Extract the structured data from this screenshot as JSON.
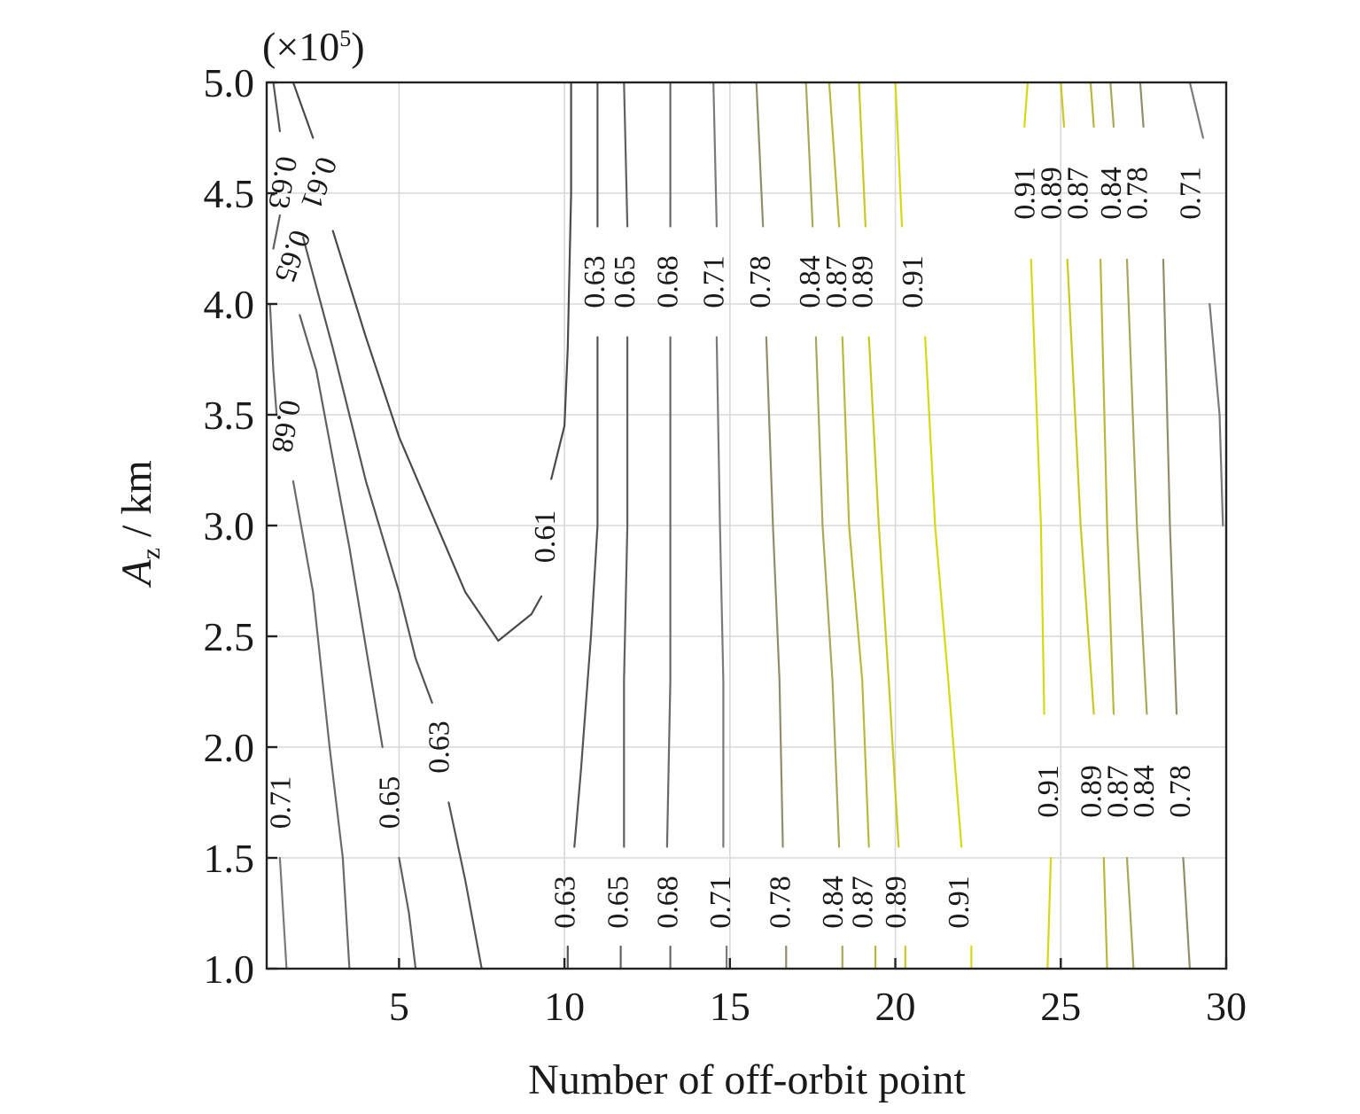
{
  "chart_data": {
    "type": "contour",
    "title": "",
    "xlabel": "Number of off-orbit point",
    "ylabel_main": "A",
    "ylabel_sub": "z",
    "ylabel_unit": " / km",
    "y_multiplier_base": "(×10",
    "y_multiplier_exp": "5",
    "y_multiplier_close": ")",
    "xlim": [
      1,
      30
    ],
    "ylim": [
      1.0,
      5.0
    ],
    "grid": true,
    "x_ticks": [
      5,
      10,
      15,
      20,
      25,
      30
    ],
    "x_tick_labels": [
      "5",
      "10",
      "15",
      "20",
      "25",
      "30"
    ],
    "y_ticks": [
      1.0,
      1.5,
      2.0,
      2.5,
      3.0,
      3.5,
      4.0,
      4.5,
      5.0
    ],
    "y_tick_labels": [
      "1.0",
      "1.5",
      "2.0",
      "2.5",
      "3.0",
      "3.5",
      "4.0",
      "4.5",
      "5.0"
    ],
    "contours": [
      {
        "level": "0.61",
        "color": "#4a4a4a",
        "points": [
          [
            1.8,
            5.0
          ],
          [
            2.4,
            4.75
          ]
        ]
      },
      {
        "level": "0.61",
        "color": "#4a4a4a",
        "points": [
          [
            3.0,
            4.33
          ],
          [
            4.0,
            3.85
          ],
          [
            5.0,
            3.4
          ],
          [
            6.0,
            3.05
          ],
          [
            7.0,
            2.7
          ],
          [
            8.0,
            2.48
          ],
          [
            9.0,
            2.6
          ],
          [
            9.3,
            2.68
          ]
        ]
      },
      {
        "level": "0.61",
        "color": "#4a4a4a",
        "points": [
          [
            9.6,
            3.21
          ],
          [
            10.0,
            3.45
          ],
          [
            10.1,
            3.8
          ],
          [
            10.2,
            4.5
          ],
          [
            10.2,
            5.0
          ]
        ]
      },
      {
        "level": "0.63",
        "color": "#555555",
        "points": [
          [
            1.2,
            5.0
          ],
          [
            1.4,
            4.78
          ]
        ]
      },
      {
        "level": "0.63",
        "color": "#555555",
        "points": [
          [
            2.1,
            4.3
          ],
          [
            3.0,
            3.8
          ],
          [
            4.0,
            3.2
          ],
          [
            5.0,
            2.7
          ],
          [
            5.5,
            2.4
          ],
          [
            6.0,
            2.2
          ]
        ]
      },
      {
        "level": "0.63",
        "color": "#555555",
        "points": [
          [
            6.5,
            1.75
          ],
          [
            7.0,
            1.4
          ],
          [
            7.5,
            1.0
          ]
        ]
      },
      {
        "level": "0.63",
        "color": "#555555",
        "points": [
          [
            10.3,
            1.55
          ],
          [
            10.5,
            1.9
          ],
          [
            10.8,
            2.5
          ],
          [
            11.0,
            3.0
          ],
          [
            11.0,
            3.85
          ]
        ]
      },
      {
        "level": "0.63",
        "color": "#555555",
        "points": [
          [
            11.0,
            4.35
          ],
          [
            11.0,
            5.0
          ]
        ]
      },
      {
        "level": "0.63",
        "color": "#555555",
        "points": [
          [
            10.1,
            1.1
          ],
          [
            10.1,
            1.0
          ]
        ]
      },
      {
        "level": "0.65",
        "color": "#606060",
        "points": [
          [
            1.2,
            4.25
          ],
          [
            1.4,
            4.4
          ]
        ]
      },
      {
        "level": "0.65",
        "color": "#606060",
        "points": [
          [
            2.0,
            3.95
          ],
          [
            2.5,
            3.7
          ],
          [
            3.0,
            3.3
          ],
          [
            3.5,
            2.9
          ],
          [
            4.0,
            2.45
          ],
          [
            4.5,
            2.0
          ]
        ]
      },
      {
        "level": "0.65",
        "color": "#606060",
        "points": [
          [
            5.0,
            1.5
          ],
          [
            5.3,
            1.25
          ],
          [
            5.5,
            1.0
          ]
        ]
      },
      {
        "level": "0.65",
        "color": "#606060",
        "points": [
          [
            11.8,
            1.55
          ],
          [
            11.8,
            2.3
          ],
          [
            11.9,
            3.0
          ],
          [
            11.9,
            3.85
          ]
        ]
      },
      {
        "level": "0.65",
        "color": "#606060",
        "points": [
          [
            11.9,
            4.35
          ],
          [
            11.8,
            5.0
          ]
        ]
      },
      {
        "level": "0.65",
        "color": "#606060",
        "points": [
          [
            11.7,
            1.1
          ],
          [
            11.7,
            1.0
          ]
        ]
      },
      {
        "level": "0.68",
        "color": "#6a6a6a",
        "points": [
          [
            1.1,
            4.0
          ],
          [
            1.2,
            3.7
          ],
          [
            1.3,
            3.5
          ]
        ]
      },
      {
        "level": "0.68",
        "color": "#6a6a6a",
        "points": [
          [
            1.8,
            3.2
          ],
          [
            2.4,
            2.7
          ],
          [
            2.9,
            2.0
          ],
          [
            3.3,
            1.5
          ],
          [
            3.5,
            1.0
          ]
        ]
      },
      {
        "level": "0.68",
        "color": "#6a6a6a",
        "points": [
          [
            13.1,
            1.55
          ],
          [
            13.2,
            2.3
          ],
          [
            13.2,
            3.0
          ],
          [
            13.2,
            3.85
          ]
        ]
      },
      {
        "level": "0.68",
        "color": "#6a6a6a",
        "points": [
          [
            13.2,
            4.35
          ],
          [
            13.2,
            5.0
          ]
        ]
      },
      {
        "level": "0.68",
        "color": "#6a6a6a",
        "points": [
          [
            13.2,
            1.1
          ],
          [
            13.2,
            1.0
          ]
        ]
      },
      {
        "level": "0.71",
        "color": "#7a7a7a",
        "points": [
          [
            1.4,
            1.5
          ],
          [
            1.6,
            1.0
          ]
        ]
      },
      {
        "level": "0.71",
        "color": "#7a7a7a",
        "points": [
          [
            14.8,
            1.55
          ],
          [
            14.8,
            2.3
          ],
          [
            14.7,
            3.0
          ],
          [
            14.6,
            3.85
          ]
        ]
      },
      {
        "level": "0.71",
        "color": "#7a7a7a",
        "points": [
          [
            14.6,
            4.35
          ],
          [
            14.5,
            5.0
          ]
        ]
      },
      {
        "level": "0.71",
        "color": "#7a7a7a",
        "points": [
          [
            14.9,
            1.1
          ],
          [
            14.9,
            1.0
          ]
        ]
      },
      {
        "level": "0.71",
        "color": "#7a7a7a",
        "points": [
          [
            28.9,
            5.0
          ],
          [
            29.3,
            4.75
          ]
        ]
      },
      {
        "level": "0.71",
        "color": "#7a7a7a",
        "points": [
          [
            29.5,
            4.0
          ],
          [
            29.8,
            3.5
          ],
          [
            29.9,
            3.0
          ]
        ]
      },
      {
        "level": "0.78",
        "color": "#8e8e6a",
        "points": [
          [
            16.6,
            1.55
          ],
          [
            16.5,
            2.3
          ],
          [
            16.3,
            3.0
          ],
          [
            16.1,
            3.85
          ]
        ]
      },
      {
        "level": "0.78",
        "color": "#8e8e6a",
        "points": [
          [
            16.0,
            4.35
          ],
          [
            15.8,
            5.0
          ]
        ]
      },
      {
        "level": "0.78",
        "color": "#8e8e6a",
        "points": [
          [
            16.7,
            1.1
          ],
          [
            16.7,
            1.0
          ]
        ]
      },
      {
        "level": "0.78",
        "color": "#8e8e6a",
        "points": [
          [
            27.5,
            4.8
          ],
          [
            27.4,
            5.0
          ]
        ]
      },
      {
        "level": "0.78",
        "color": "#8e8e6a",
        "points": [
          [
            28.1,
            4.2
          ],
          [
            28.3,
            3.0
          ],
          [
            28.5,
            2.15
          ]
        ]
      },
      {
        "level": "0.78",
        "color": "#8e8e6a",
        "points": [
          [
            28.7,
            1.5
          ],
          [
            28.9,
            1.0
          ]
        ]
      },
      {
        "level": "0.84",
        "color": "#a8a85a",
        "points": [
          [
            18.3,
            1.55
          ],
          [
            18.1,
            2.3
          ],
          [
            17.8,
            3.0
          ],
          [
            17.6,
            3.85
          ]
        ]
      },
      {
        "level": "0.84",
        "color": "#a8a85a",
        "points": [
          [
            17.5,
            4.35
          ],
          [
            17.3,
            5.0
          ]
        ]
      },
      {
        "level": "0.84",
        "color": "#a8a85a",
        "points": [
          [
            18.4,
            1.1
          ],
          [
            18.4,
            1.0
          ]
        ]
      },
      {
        "level": "0.84",
        "color": "#a8a85a",
        "points": [
          [
            26.6,
            4.8
          ],
          [
            26.5,
            5.0
          ]
        ]
      },
      {
        "level": "0.84",
        "color": "#a8a85a",
        "points": [
          [
            27.0,
            4.2
          ],
          [
            27.3,
            3.0
          ],
          [
            27.6,
            2.15
          ]
        ]
      },
      {
        "level": "0.84",
        "color": "#a8a85a",
        "points": [
          [
            27.0,
            1.5
          ],
          [
            27.2,
            1.0
          ]
        ]
      },
      {
        "level": "0.87",
        "color": "#b8b83c",
        "points": [
          [
            19.2,
            1.55
          ],
          [
            19.0,
            2.3
          ],
          [
            18.6,
            3.0
          ],
          [
            18.4,
            3.85
          ]
        ]
      },
      {
        "level": "0.87",
        "color": "#b8b83c",
        "points": [
          [
            18.3,
            4.35
          ],
          [
            18.0,
            5.0
          ]
        ]
      },
      {
        "level": "0.87",
        "color": "#b8b83c",
        "points": [
          [
            19.4,
            1.1
          ],
          [
            19.4,
            1.0
          ]
        ]
      },
      {
        "level": "0.87",
        "color": "#b8b83c",
        "points": [
          [
            26.0,
            4.8
          ],
          [
            25.9,
            5.0
          ]
        ]
      },
      {
        "level": "0.87",
        "color": "#b8b83c",
        "points": [
          [
            26.2,
            4.2
          ],
          [
            26.4,
            3.0
          ],
          [
            26.6,
            2.15
          ]
        ]
      },
      {
        "level": "0.87",
        "color": "#b8b83c",
        "points": [
          [
            26.3,
            1.5
          ],
          [
            26.4,
            1.0
          ]
        ]
      },
      {
        "level": "0.89",
        "color": "#c9c922",
        "points": [
          [
            20.1,
            1.55
          ],
          [
            19.8,
            2.3
          ],
          [
            19.5,
            3.0
          ],
          [
            19.2,
            3.85
          ]
        ]
      },
      {
        "level": "0.89",
        "color": "#c9c922",
        "points": [
          [
            19.1,
            4.35
          ],
          [
            18.9,
            5.0
          ]
        ]
      },
      {
        "level": "0.89",
        "color": "#c9c922",
        "points": [
          [
            20.3,
            1.1
          ],
          [
            20.3,
            1.0
          ]
        ]
      },
      {
        "level": "0.89",
        "color": "#c9c922",
        "points": [
          [
            25.1,
            4.8
          ],
          [
            25.0,
            5.0
          ]
        ]
      },
      {
        "level": "0.89",
        "color": "#c9c922",
        "points": [
          [
            25.2,
            4.2
          ],
          [
            25.6,
            3.0
          ],
          [
            26.0,
            2.15
          ]
        ]
      },
      {
        "level": "0.91",
        "color": "#d8d812",
        "points": [
          [
            22.0,
            1.55
          ],
          [
            21.6,
            2.3
          ],
          [
            21.2,
            3.0
          ],
          [
            20.9,
            3.85
          ]
        ]
      },
      {
        "level": "0.91",
        "color": "#d8d812",
        "points": [
          [
            20.2,
            4.35
          ],
          [
            20.0,
            5.0
          ]
        ]
      },
      {
        "level": "0.91",
        "color": "#d8d812",
        "points": [
          [
            22.3,
            1.1
          ],
          [
            22.3,
            1.0
          ]
        ]
      },
      {
        "level": "0.91",
        "color": "#d8d812",
        "points": [
          [
            23.9,
            4.8
          ],
          [
            24.0,
            5.0
          ]
        ]
      },
      {
        "level": "0.91",
        "color": "#d8d812",
        "points": [
          [
            24.1,
            4.2
          ],
          [
            24.4,
            3.0
          ],
          [
            24.5,
            2.15
          ]
        ]
      },
      {
        "level": "0.91",
        "color": "#d8d812",
        "points": [
          [
            24.7,
            1.5
          ],
          [
            24.6,
            1.0
          ]
        ]
      }
    ],
    "contour_labels": [
      {
        "text": "0.61",
        "x": 2.5,
        "y": 4.55,
        "angle": 110
      },
      {
        "text": "0.63",
        "x": 1.4,
        "y": 4.55,
        "angle": 100
      },
      {
        "text": "0.65",
        "x": 1.7,
        "y": 4.22,
        "angle": 110
      },
      {
        "text": "0.68",
        "x": 1.5,
        "y": 3.45,
        "angle": 100
      },
      {
        "text": "0.71",
        "x": 1.5,
        "y": 1.75,
        "angle": -90
      },
      {
        "text": "0.65",
        "x": 4.8,
        "y": 1.75,
        "angle": -90
      },
      {
        "text": "0.63",
        "x": 6.3,
        "y": 2.0,
        "angle": -90
      },
      {
        "text": "0.61",
        "x": 9.5,
        "y": 2.95,
        "angle": -90
      },
      {
        "text": "0.63",
        "x": 11.0,
        "y": 4.1,
        "angle": -90
      },
      {
        "text": "0.65",
        "x": 11.9,
        "y": 4.1,
        "angle": -90
      },
      {
        "text": "0.68",
        "x": 13.2,
        "y": 4.1,
        "angle": -90
      },
      {
        "text": "0.71",
        "x": 14.6,
        "y": 4.1,
        "angle": -90
      },
      {
        "text": "0.78",
        "x": 16.0,
        "y": 4.1,
        "angle": -90
      },
      {
        "text": "0.84",
        "x": 17.5,
        "y": 4.1,
        "angle": -90
      },
      {
        "text": "0.87",
        "x": 18.3,
        "y": 4.1,
        "angle": -90
      },
      {
        "text": "0.89",
        "x": 19.1,
        "y": 4.1,
        "angle": -90
      },
      {
        "text": "0.91",
        "x": 20.6,
        "y": 4.1,
        "angle": -90
      },
      {
        "text": "0.91",
        "x": 24.0,
        "y": 4.5,
        "angle": -90
      },
      {
        "text": "0.89",
        "x": 24.8,
        "y": 4.5,
        "angle": -90
      },
      {
        "text": "0.87",
        "x": 25.6,
        "y": 4.5,
        "angle": -90
      },
      {
        "text": "0.84",
        "x": 26.6,
        "y": 4.5,
        "angle": -90
      },
      {
        "text": "0.78",
        "x": 27.4,
        "y": 4.5,
        "angle": -90
      },
      {
        "text": "0.71",
        "x": 29.0,
        "y": 4.5,
        "angle": -90
      },
      {
        "text": "0.63",
        "x": 10.1,
        "y": 1.3,
        "angle": -90
      },
      {
        "text": "0.65",
        "x": 11.7,
        "y": 1.3,
        "angle": -90
      },
      {
        "text": "0.68",
        "x": 13.2,
        "y": 1.3,
        "angle": -90
      },
      {
        "text": "0.71",
        "x": 14.8,
        "y": 1.3,
        "angle": -90
      },
      {
        "text": "0.78",
        "x": 16.6,
        "y": 1.3,
        "angle": -90
      },
      {
        "text": "0.84",
        "x": 18.2,
        "y": 1.3,
        "angle": -90
      },
      {
        "text": "0.87",
        "x": 19.1,
        "y": 1.3,
        "angle": -90
      },
      {
        "text": "0.89",
        "x": 20.1,
        "y": 1.3,
        "angle": -90
      },
      {
        "text": "0.91",
        "x": 22.0,
        "y": 1.3,
        "angle": -90
      },
      {
        "text": "0.91",
        "x": 24.7,
        "y": 1.8,
        "angle": -90
      },
      {
        "text": "0.89",
        "x": 26.0,
        "y": 1.8,
        "angle": -90
      },
      {
        "text": "0.87",
        "x": 26.8,
        "y": 1.8,
        "angle": -90
      },
      {
        "text": "0.84",
        "x": 27.6,
        "y": 1.8,
        "angle": -90
      },
      {
        "text": "0.78",
        "x": 28.7,
        "y": 1.8,
        "angle": -90
      }
    ]
  }
}
